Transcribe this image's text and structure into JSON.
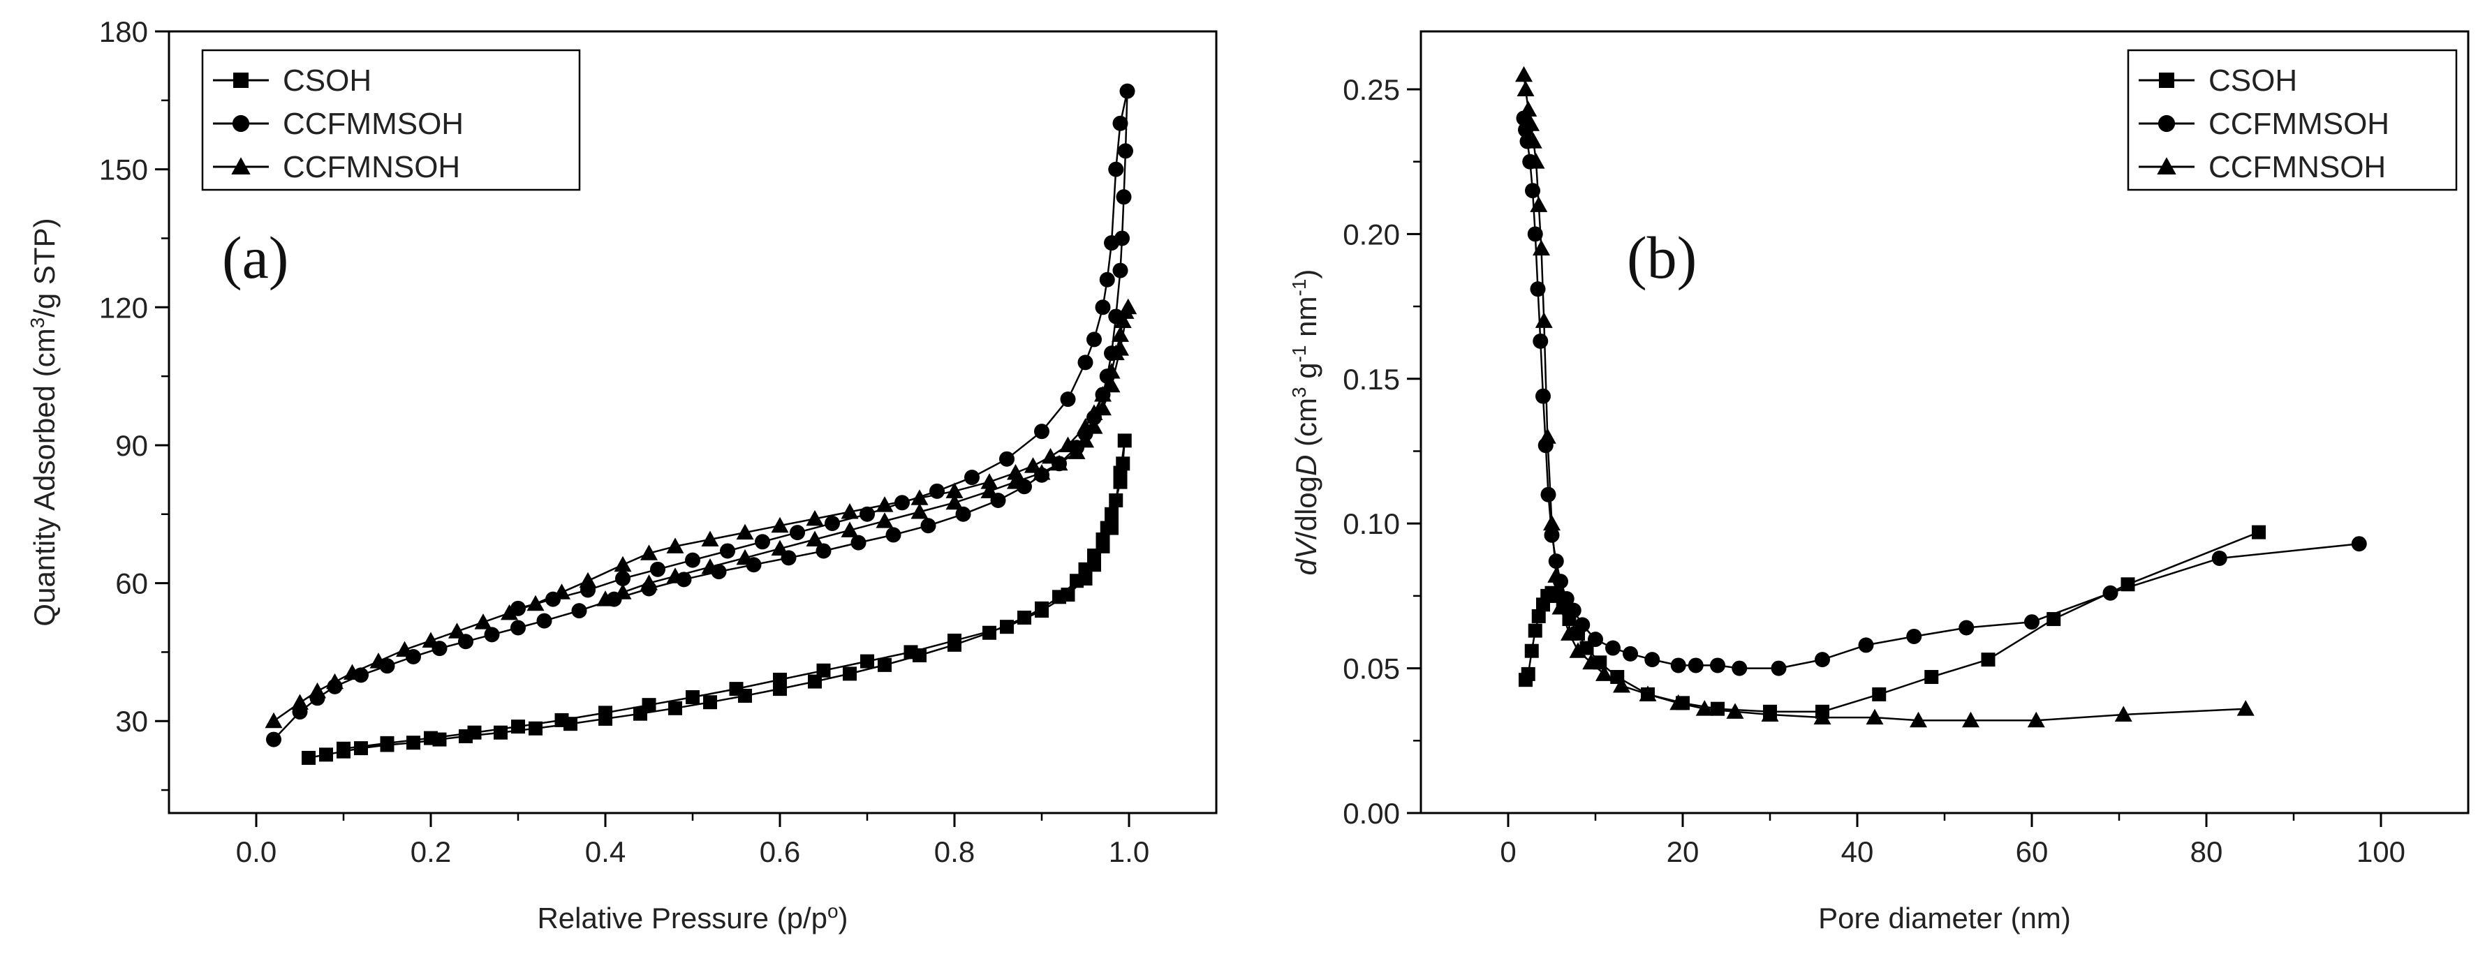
{
  "chart_data": [
    {
      "type": "line",
      "panel_label": "(a)",
      "xlabel": "Relative Pressure (p/p°)",
      "ylabel": "Quantity Adsorbed (cm³/g STP)",
      "xlim": [
        -0.1,
        1.1
      ],
      "ylim": [
        10,
        180
      ],
      "xticks": [
        0.0,
        0.2,
        0.4,
        0.6,
        0.8,
        1.0
      ],
      "xtick_labels": [
        "0.0",
        "0.2",
        "0.4",
        "0.6",
        "0.8",
        "1.0"
      ],
      "yticks": [
        30,
        60,
        90,
        120,
        150,
        180
      ],
      "ytick_labels": [
        "30",
        "60",
        "90",
        "120",
        "150",
        "180"
      ],
      "legend_position": "top-left",
      "series": [
        {
          "name": "CSOH",
          "marker": "square",
          "x": [
            0.06,
            0.08,
            0.1,
            0.12,
            0.15,
            0.18,
            0.21,
            0.24,
            0.28,
            0.32,
            0.36,
            0.4,
            0.44,
            0.48,
            0.52,
            0.56,
            0.6,
            0.64,
            0.68,
            0.72,
            0.76,
            0.8,
            0.84,
            0.88,
            0.9,
            0.92,
            0.94,
            0.95,
            0.96,
            0.97,
            0.975,
            0.98,
            0.985,
            0.99,
            0.993,
            0.995,
            0.99,
            0.98,
            0.97,
            0.96,
            0.95,
            0.93,
            0.9,
            0.86,
            0.8,
            0.75,
            0.7,
            0.65,
            0.6,
            0.55,
            0.5,
            0.45,
            0.4,
            0.35,
            0.3,
            0.25,
            0.2,
            0.15,
            0.1
          ],
          "values": [
            22,
            22.7,
            23.4,
            24.1,
            24.8,
            25.3,
            26.0,
            26.7,
            27.5,
            28.4,
            29.4,
            30.5,
            31.6,
            32.8,
            34.1,
            35.5,
            37.0,
            38.6,
            40.3,
            42.2,
            44.3,
            46.6,
            49.2,
            52.5,
            54.5,
            57.0,
            60.5,
            63.0,
            66.0,
            69.5,
            72.0,
            75.0,
            78.0,
            82.0,
            86.0,
            91.0,
            84.0,
            72.0,
            68.0,
            64.0,
            61.0,
            57.5,
            54.0,
            50.5,
            47.5,
            45.0,
            43.0,
            41.0,
            39.0,
            37.0,
            35.2,
            33.5,
            31.8,
            30.2,
            28.8,
            27.5,
            26.3,
            25.2,
            24.0
          ]
        },
        {
          "name": "CCFMMSOH",
          "marker": "circle",
          "x": [
            0.02,
            0.05,
            0.07,
            0.09,
            0.12,
            0.15,
            0.18,
            0.21,
            0.24,
            0.27,
            0.3,
            0.33,
            0.37,
            0.41,
            0.45,
            0.49,
            0.53,
            0.57,
            0.61,
            0.65,
            0.69,
            0.73,
            0.77,
            0.81,
            0.85,
            0.88,
            0.9,
            0.92,
            0.94,
            0.95,
            0.96,
            0.97,
            0.975,
            0.98,
            0.985,
            0.99,
            0.992,
            0.994,
            0.996,
            0.998,
            0.99,
            0.985,
            0.98,
            0.975,
            0.97,
            0.96,
            0.95,
            0.93,
            0.9,
            0.86,
            0.82,
            0.78,
            0.74,
            0.7,
            0.66,
            0.62,
            0.58,
            0.54,
            0.5,
            0.46,
            0.42,
            0.38,
            0.34,
            0.3
          ],
          "values": [
            26,
            32,
            35,
            37.5,
            40.0,
            42.0,
            44.0,
            45.8,
            47.3,
            48.8,
            50.3,
            51.8,
            54.0,
            56.5,
            58.8,
            60.8,
            62.5,
            64.0,
            65.5,
            67.0,
            68.8,
            70.5,
            72.5,
            75.0,
            78.0,
            81.0,
            83.5,
            86.0,
            89.5,
            92.5,
            96.0,
            101.0,
            105.0,
            110.0,
            118.0,
            128.0,
            135.0,
            144.0,
            154.0,
            167.0,
            160.0,
            150.0,
            134.0,
            126.0,
            120.0,
            113.0,
            108.0,
            100.0,
            93.0,
            87.0,
            83.0,
            80.0,
            77.5,
            75.0,
            73.0,
            71.0,
            69.0,
            67.0,
            65.0,
            63.0,
            61.0,
            58.5,
            56.5,
            54.5
          ]
        },
        {
          "name": "CCFMNSOH",
          "marker": "triangle",
          "x": [
            0.02,
            0.05,
            0.07,
            0.09,
            0.11,
            0.14,
            0.17,
            0.2,
            0.23,
            0.26,
            0.29,
            0.32,
            0.35,
            0.38,
            0.42,
            0.45,
            0.48,
            0.52,
            0.56,
            0.6,
            0.64,
            0.68,
            0.72,
            0.76,
            0.8,
            0.84,
            0.87,
            0.89,
            0.91,
            0.93,
            0.95,
            0.96,
            0.97,
            0.98,
            0.985,
            0.99,
            0.993,
            0.996,
            0.999,
            0.99,
            0.98,
            0.97,
            0.96,
            0.95,
            0.94,
            0.92,
            0.9,
            0.87,
            0.84,
            0.8,
            0.76,
            0.72,
            0.68,
            0.64,
            0.6,
            0.56,
            0.52,
            0.48,
            0.45,
            0.42,
            0.4
          ],
          "values": [
            30,
            34,
            36.5,
            38.5,
            40.5,
            43.0,
            45.5,
            47.5,
            49.5,
            51.5,
            53.5,
            55.5,
            58.0,
            60.5,
            64.0,
            66.5,
            68.0,
            69.5,
            71.0,
            72.5,
            74.0,
            75.5,
            77.0,
            78.5,
            80.0,
            82.0,
            84.0,
            85.5,
            87.5,
            90.0,
            94.0,
            97.0,
            101.0,
            106.0,
            110.0,
            114.0,
            117.0,
            119.0,
            120.0,
            111.0,
            103.0,
            98.0,
            94.0,
            91.0,
            88.5,
            86.0,
            84.0,
            82.0,
            80.0,
            77.5,
            75.5,
            73.5,
            71.5,
            69.5,
            67.5,
            65.5,
            63.5,
            61.5,
            60.0,
            58.0,
            56.5
          ]
        }
      ]
    },
    {
      "type": "line",
      "panel_label": "(b)",
      "xlabel": "Pore diameter (nm)",
      "ylabel": "dV/dlogD (cm³ g⁻¹ nm⁻¹)",
      "xlim": [
        -10,
        110
      ],
      "ylim": [
        0.0,
        0.27
      ],
      "xticks": [
        0,
        20,
        40,
        60,
        80,
        100
      ],
      "xtick_labels": [
        "0",
        "20",
        "40",
        "60",
        "80",
        "100"
      ],
      "yticks": [
        0.0,
        0.05,
        0.1,
        0.15,
        0.2,
        0.25
      ],
      "ytick_labels": [
        "0.00",
        "0.05",
        "0.10",
        "0.15",
        "0.20",
        "0.25"
      ],
      "legend_position": "top-right",
      "series": [
        {
          "name": "CSOH",
          "marker": "square",
          "x": [
            2.0,
            2.3,
            2.7,
            3.1,
            3.5,
            4.0,
            4.5,
            5.0,
            5.6,
            6.3,
            7.0,
            8.0,
            9.0,
            10.5,
            12.5,
            16.0,
            20.0,
            24.0,
            30.0,
            36.0,
            42.5,
            48.5,
            55.0,
            62.5,
            71.0,
            86.0
          ],
          "values": [
            0.046,
            0.048,
            0.056,
            0.063,
            0.068,
            0.072,
            0.075,
            0.076,
            0.075,
            0.071,
            0.067,
            0.062,
            0.057,
            0.052,
            0.047,
            0.041,
            0.038,
            0.036,
            0.035,
            0.035,
            0.041,
            0.047,
            0.053,
            0.067,
            0.079,
            0.097
          ]
        },
        {
          "name": "CCFMMSOH",
          "marker": "circle",
          "x": [
            1.8,
            2.0,
            2.2,
            2.5,
            2.8,
            3.1,
            3.4,
            3.7,
            4.0,
            4.3,
            4.6,
            5.0,
            5.5,
            6.0,
            6.7,
            7.5,
            8.5,
            10.0,
            12.0,
            14.0,
            16.5,
            19.5,
            21.5,
            24.0,
            26.5,
            31.0,
            36.0,
            41.0,
            46.5,
            52.5,
            60.0,
            69.0,
            81.5,
            97.5
          ],
          "values": [
            0.24,
            0.236,
            0.232,
            0.225,
            0.215,
            0.2,
            0.181,
            0.163,
            0.144,
            0.127,
            0.11,
            0.096,
            0.087,
            0.08,
            0.074,
            0.07,
            0.065,
            0.06,
            0.057,
            0.055,
            0.053,
            0.051,
            0.051,
            0.051,
            0.05,
            0.05,
            0.053,
            0.058,
            0.061,
            0.064,
            0.066,
            0.076,
            0.088,
            0.093
          ]
        },
        {
          "name": "CCFMNSOH",
          "marker": "triangle",
          "x": [
            1.8,
            2.0,
            2.3,
            2.6,
            2.9,
            3.2,
            3.5,
            3.8,
            4.1,
            4.5,
            5.0,
            5.5,
            6.0,
            7.0,
            8.0,
            9.5,
            11.0,
            13.0,
            16.0,
            19.5,
            22.5,
            26.0,
            30.0,
            36.0,
            42.0,
            47.0,
            53.0,
            60.5,
            70.5,
            84.5
          ],
          "values": [
            0.255,
            0.25,
            0.243,
            0.238,
            0.232,
            0.225,
            0.21,
            0.195,
            0.17,
            0.13,
            0.1,
            0.082,
            0.071,
            0.062,
            0.056,
            0.052,
            0.048,
            0.044,
            0.041,
            0.038,
            0.036,
            0.035,
            0.034,
            0.033,
            0.033,
            0.032,
            0.032,
            0.032,
            0.034,
            0.036
          ]
        }
      ]
    }
  ]
}
